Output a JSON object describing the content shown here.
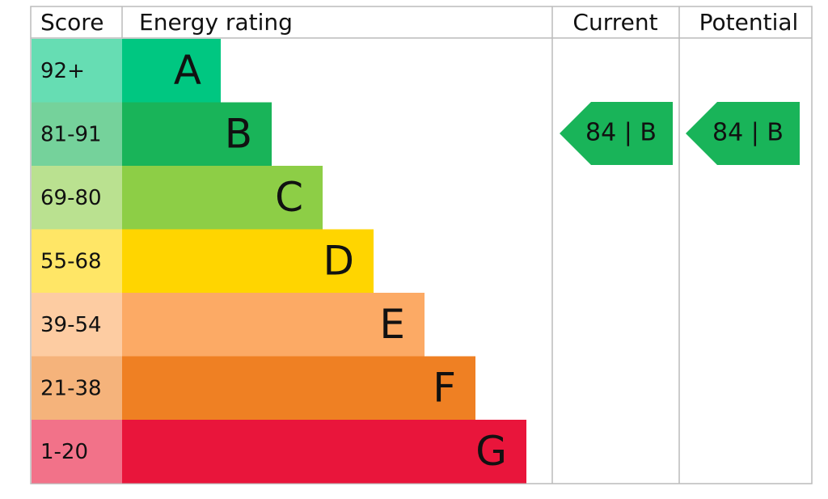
{
  "header": {
    "score": "Score",
    "rating": "Energy rating",
    "current": "Current",
    "potential": "Potential"
  },
  "bands": [
    {
      "score": "92+",
      "letter": "A",
      "color": "#00c781"
    },
    {
      "score": "81-91",
      "letter": "B",
      "color": "#19b459"
    },
    {
      "score": "69-80",
      "letter": "C",
      "color": "#8dce46"
    },
    {
      "score": "55-68",
      "letter": "D",
      "color": "#ffd500"
    },
    {
      "score": "39-54",
      "letter": "E",
      "color": "#fcaa65"
    },
    {
      "score": "21-38",
      "letter": "F",
      "color": "#ef8023"
    },
    {
      "score": "1-20",
      "letter": "G",
      "color": "#e9153b"
    }
  ],
  "current": {
    "label": "84 | B",
    "color": "#19b459"
  },
  "potential": {
    "label": "84 | B",
    "color": "#19b459"
  }
}
